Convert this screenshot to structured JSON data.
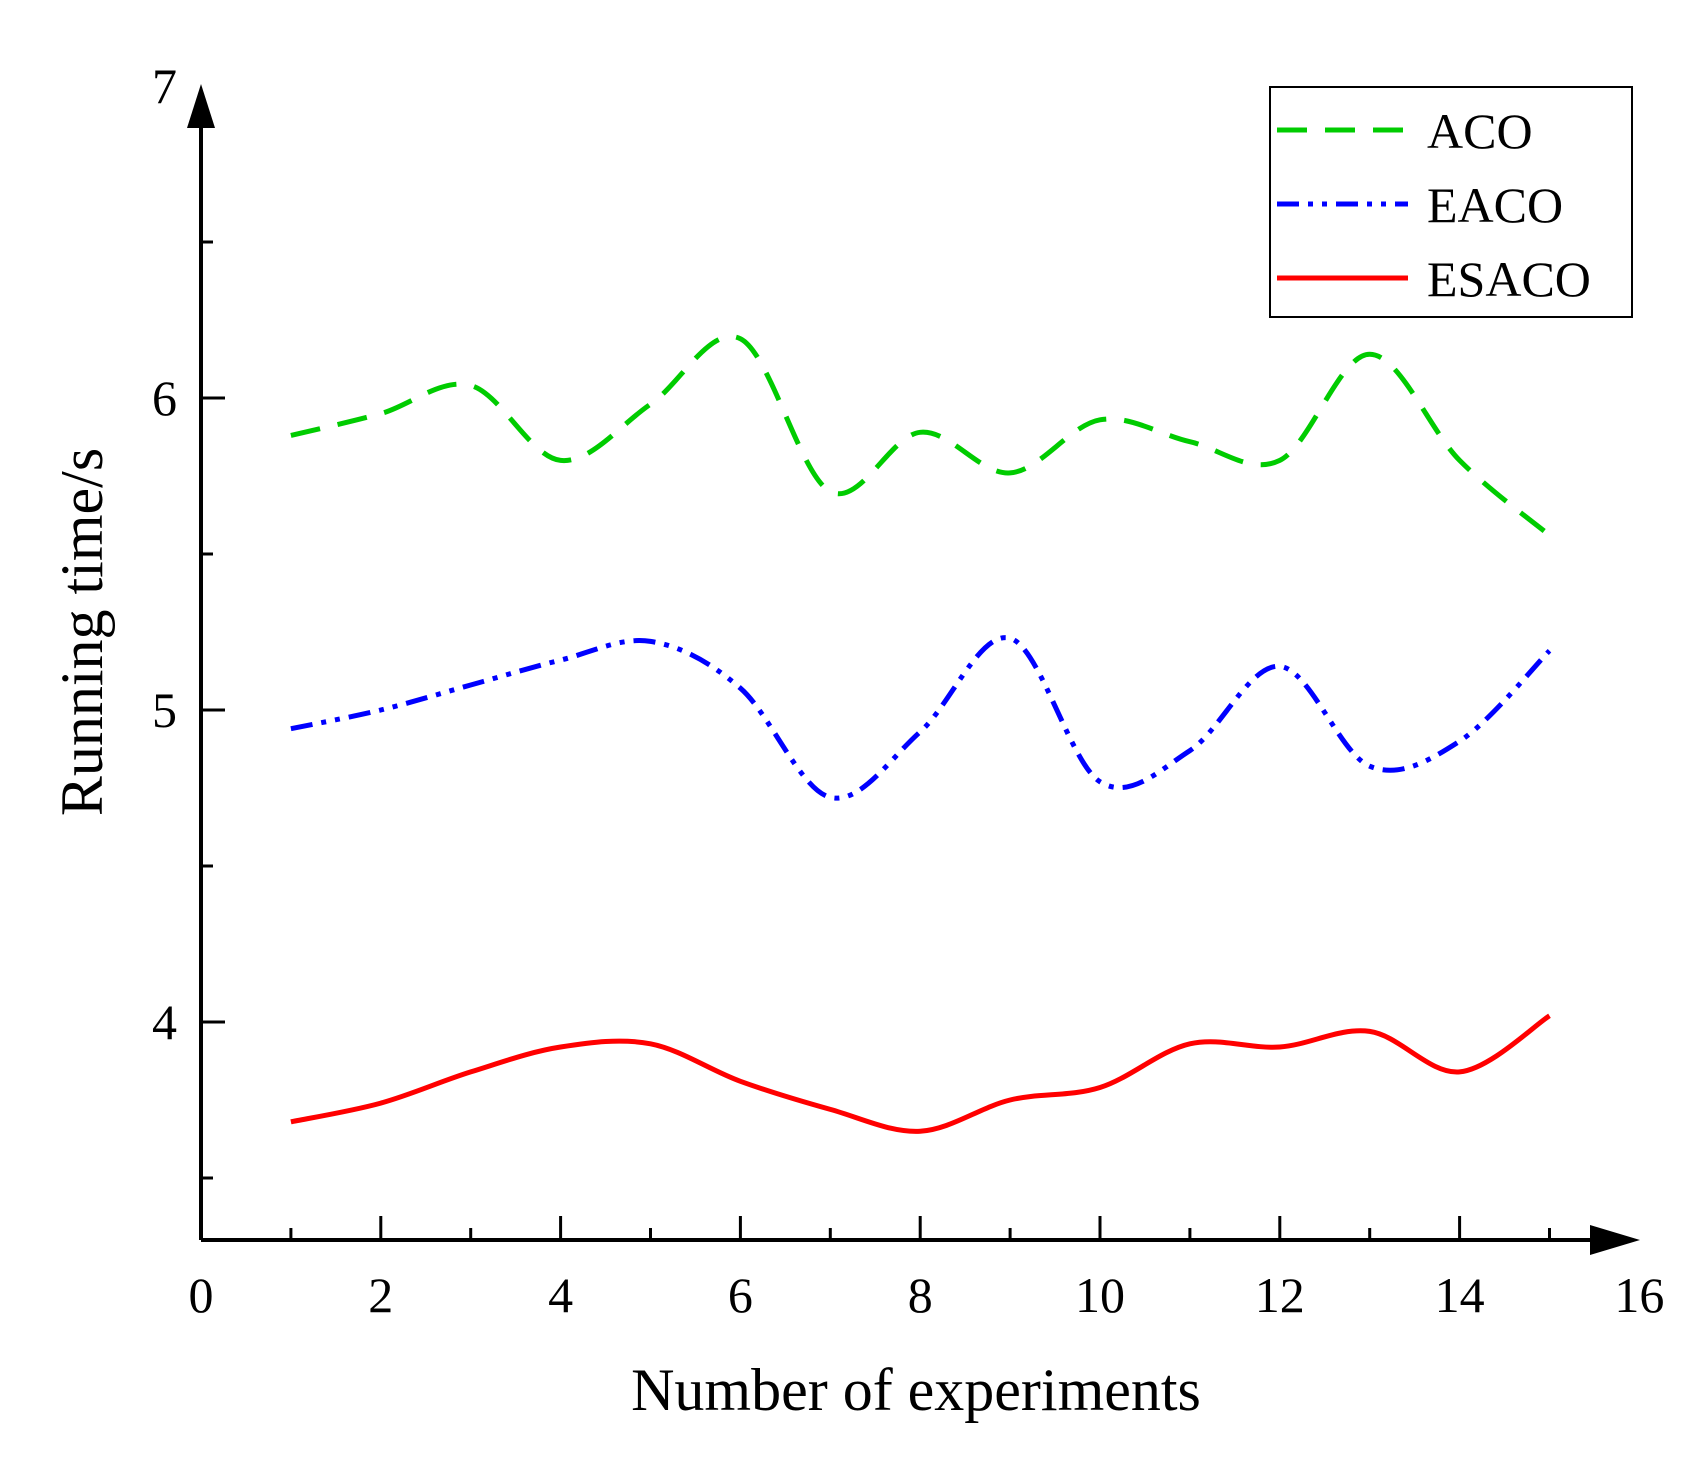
{
  "chart_data": {
    "type": "line",
    "xlabel": "Number of experiments",
    "ylabel": "Running time/s",
    "xlim": [
      0,
      16
    ],
    "ylim": [
      3.35,
      7
    ],
    "xticks": [
      "0",
      "2",
      "4",
      "6",
      "8",
      "10",
      "12",
      "14",
      "16"
    ],
    "yticks": [
      "4",
      "5",
      "6",
      "7"
    ],
    "grid": false,
    "legend_position": "top-right",
    "x": [
      1,
      2,
      3,
      4,
      5,
      6,
      7,
      8,
      9,
      10,
      11,
      12,
      13,
      14,
      15
    ],
    "series": [
      {
        "name": "ACO",
        "color": "#00cc00",
        "style": "dashed",
        "values": [
          5.88,
          5.95,
          6.04,
          5.8,
          5.98,
          6.19,
          5.7,
          5.89,
          5.76,
          5.93,
          5.86,
          5.8,
          6.14,
          5.8,
          5.56
        ]
      },
      {
        "name": "EACO",
        "color": "#0000ff",
        "style": "dash-dot-dot",
        "values": [
          4.94,
          5.0,
          5.08,
          5.16,
          5.22,
          5.07,
          4.72,
          4.93,
          5.23,
          4.77,
          4.87,
          5.14,
          4.82,
          4.9,
          5.19
        ]
      },
      {
        "name": "ESACO",
        "color": "#ff0000",
        "style": "solid",
        "values": [
          3.68,
          3.74,
          3.84,
          3.92,
          3.93,
          3.81,
          3.72,
          3.65,
          3.75,
          3.79,
          3.93,
          3.92,
          3.97,
          3.84,
          4.02
        ]
      }
    ]
  }
}
